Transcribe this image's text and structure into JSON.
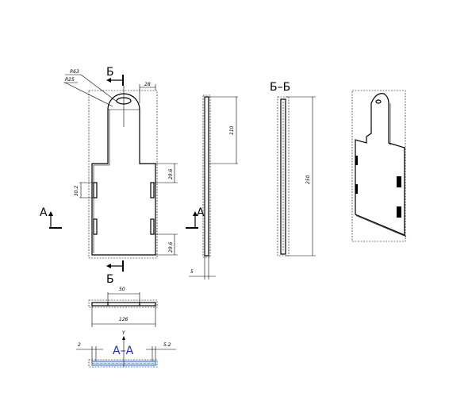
{
  "section_labels": {
    "b_top": "Б",
    "b_bottom": "Б",
    "a_left": "А",
    "a_right": "А",
    "bb_title": "Б–Б",
    "aa_title": "А–А"
  },
  "dimensions": {
    "r63": "R63",
    "r25": "R25",
    "d28": "28",
    "d110": "110",
    "d302": "30.2",
    "d296_top": "29.6",
    "d296_bot": "29.6",
    "d5": "5",
    "d250": "250",
    "d50": "50",
    "d126": "126",
    "d2": "2",
    "d52": "5.2",
    "y_axis": "Y"
  }
}
